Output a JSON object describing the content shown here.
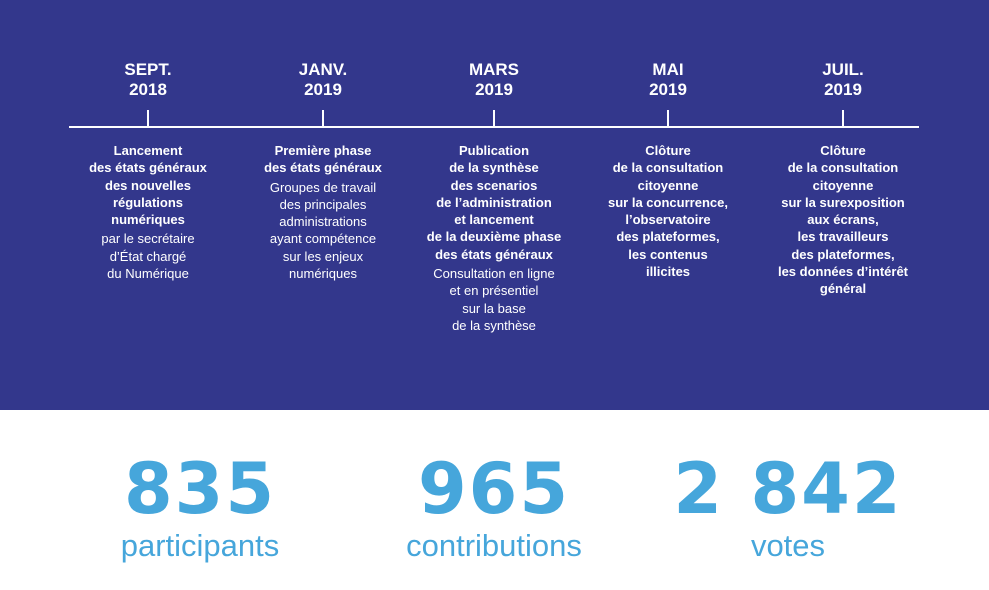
{
  "colors": {
    "panel": "#33378c",
    "text": "#ffffff",
    "accent": "#46a6db"
  },
  "timeline": {
    "events": [
      {
        "date": "SEPT.\n2018",
        "bold": "Lancement\ndes états généraux\ndes nouvelles\nrégulations\nnumériques",
        "text": "par le secrétaire\nd’État chargé\ndu Numérique"
      },
      {
        "date": "JANV.\n2019",
        "bold": "Première phase\ndes états généraux",
        "text": "Groupes de travail\ndes principales\nadministrations\nayant compétence\nsur les enjeux\nnumériques"
      },
      {
        "date": "MARS\n2019",
        "bold": "Publication\nde la synthèse\ndes scenarios\nde l’administration\net lancement\nde la deuxième phase\ndes états généraux",
        "text": "Consultation en ligne\net en présentiel\nsur la base\nde la synthèse"
      },
      {
        "date": "MAI\n2019",
        "bold": "Clôture\nde la consultation\ncitoyenne\nsur la concurrence,\nl’observatoire\ndes plateformes,\nles contenus\nillicites",
        "text": ""
      },
      {
        "date": "JUIL.\n2019",
        "bold": "Clôture\nde la consultation\ncitoyenne\nsur la surexposition\naux écrans,\nles travailleurs\ndes plateformes,\nles données d’intérêt\ngénéral",
        "text": ""
      }
    ]
  },
  "stats": [
    {
      "value": "835",
      "label": "participants"
    },
    {
      "value": "965",
      "label": "contributions"
    },
    {
      "value": "2 842",
      "label": "votes"
    }
  ]
}
